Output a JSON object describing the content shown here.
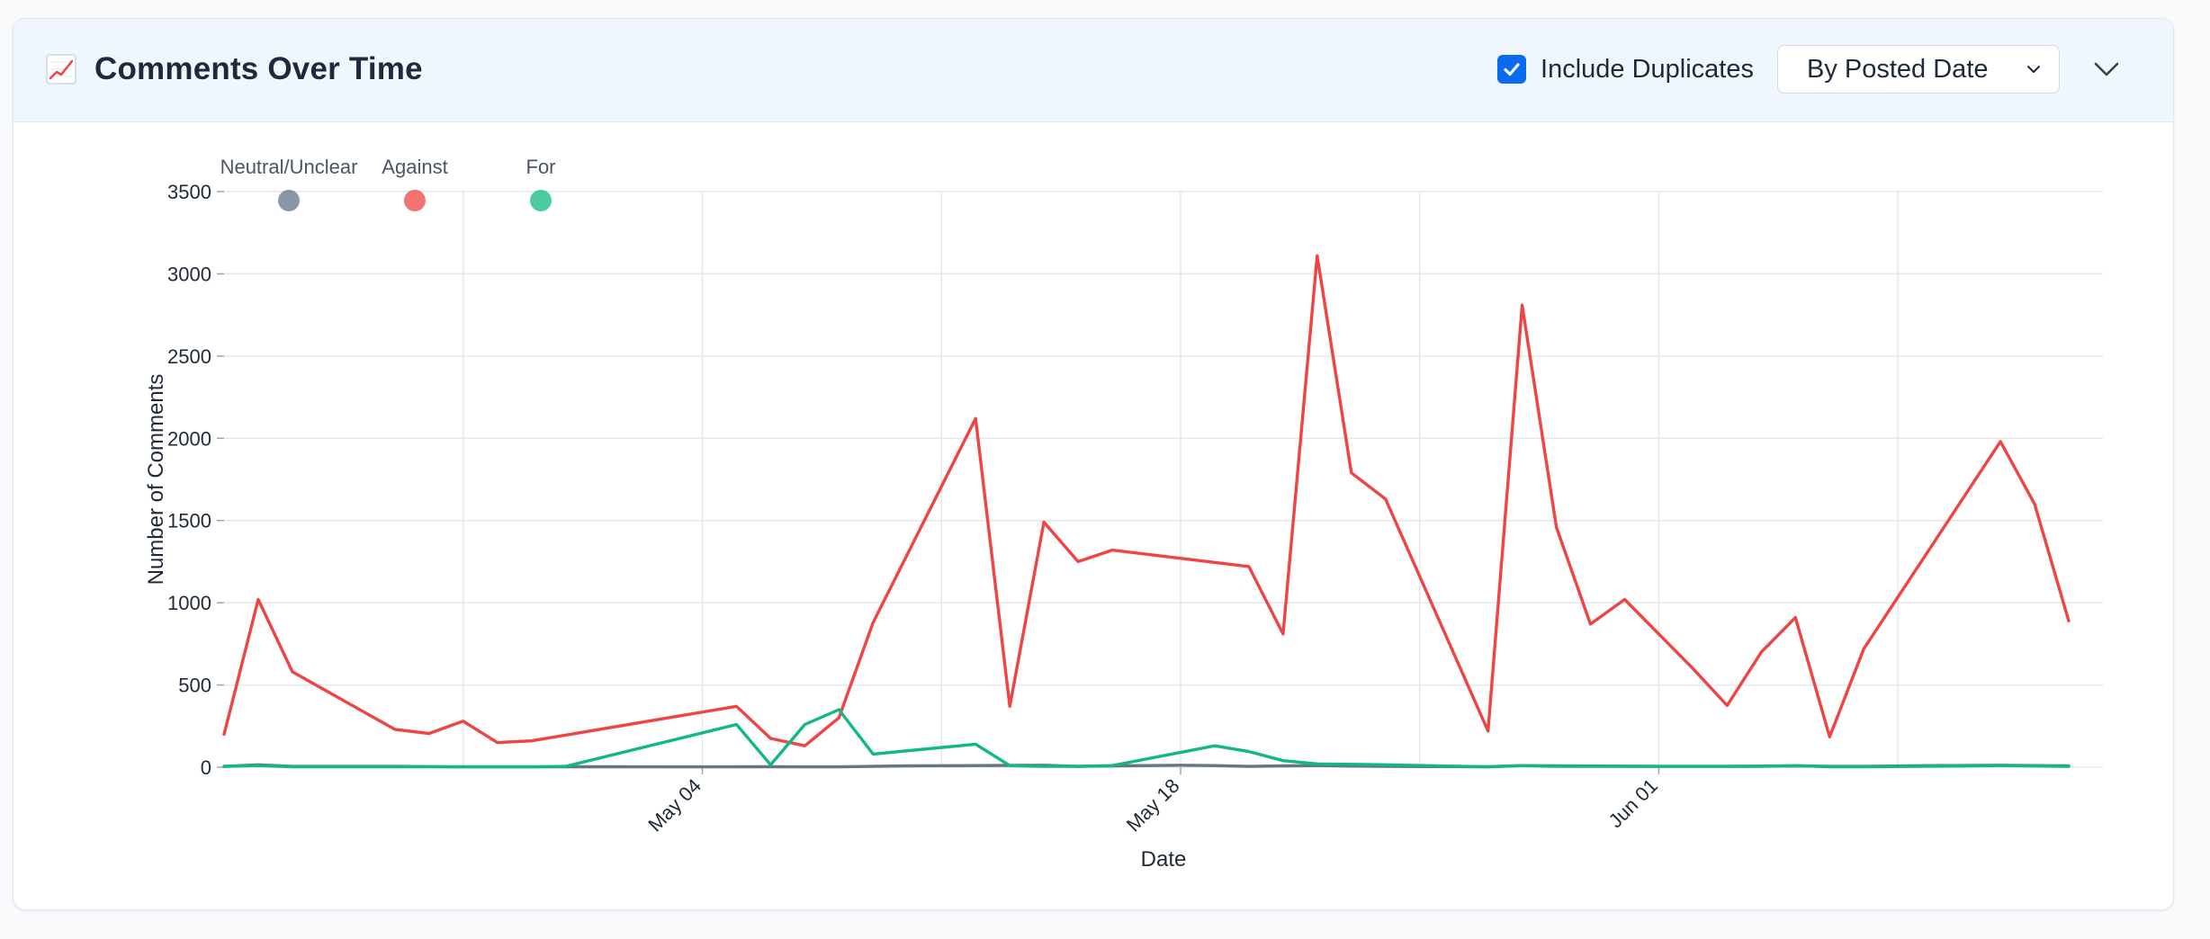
{
  "header": {
    "title": "Comments Over Time",
    "title_icon": "chart-increasing-icon",
    "include_duplicates_label": "Include Duplicates",
    "include_duplicates_checked": true,
    "sort_select_value": "By Posted Date",
    "collapse_icon": "chevron-down-icon"
  },
  "colors": {
    "accent": "#0b6bf0",
    "neutral": "#64748b",
    "against": "#ef4444",
    "for": "#10b981"
  },
  "chart_data": {
    "type": "line",
    "xlabel": "Date",
    "ylabel": "Number of Comments",
    "ylim": [
      0,
      3500
    ],
    "yticks": [
      0,
      500,
      1000,
      1500,
      2000,
      2500,
      3000,
      3500
    ],
    "xlim": [
      "2025-04-20",
      "2025-06-14"
    ],
    "xticks": [
      {
        "date": "2025-05-04",
        "label": "May 04"
      },
      {
        "date": "2025-05-18",
        "label": "May 18"
      },
      {
        "date": "2025-06-01",
        "label": "Jun 01"
      }
    ],
    "grid": true,
    "legend_position": "top-left",
    "series": [
      {
        "name": "Neutral/Unclear",
        "color": "#64748b",
        "points": [
          [
            "2025-04-20",
            5
          ],
          [
            "2025-04-21",
            15
          ],
          [
            "2025-04-22",
            5
          ],
          [
            "2025-04-25",
            5
          ],
          [
            "2025-04-27",
            2
          ],
          [
            "2025-04-29",
            2
          ],
          [
            "2025-04-30",
            3
          ],
          [
            "2025-05-04",
            2
          ],
          [
            "2025-05-06",
            3
          ],
          [
            "2025-05-08",
            2
          ],
          [
            "2025-05-10",
            8
          ],
          [
            "2025-05-12",
            10
          ],
          [
            "2025-05-14",
            12
          ],
          [
            "2025-05-15",
            5
          ],
          [
            "2025-05-16",
            8
          ],
          [
            "2025-05-17",
            10
          ],
          [
            "2025-05-18",
            12
          ],
          [
            "2025-05-19",
            10
          ],
          [
            "2025-05-20",
            5
          ],
          [
            "2025-05-21",
            8
          ],
          [
            "2025-05-22",
            10
          ],
          [
            "2025-05-24",
            5
          ],
          [
            "2025-05-27",
            3
          ],
          [
            "2025-05-28",
            10
          ],
          [
            "2025-05-29",
            8
          ],
          [
            "2025-06-01",
            5
          ],
          [
            "2025-06-03",
            5
          ],
          [
            "2025-06-05",
            8
          ],
          [
            "2025-06-06",
            5
          ],
          [
            "2025-06-07",
            5
          ],
          [
            "2025-06-09",
            10
          ],
          [
            "2025-06-11",
            12
          ],
          [
            "2025-06-13",
            8
          ]
        ]
      },
      {
        "name": "Against",
        "color": "#ef4444",
        "points": [
          [
            "2025-04-20",
            200
          ],
          [
            "2025-04-21",
            1020
          ],
          [
            "2025-04-22",
            580
          ],
          [
            "2025-04-25",
            230
          ],
          [
            "2025-04-26",
            205
          ],
          [
            "2025-04-27",
            280
          ],
          [
            "2025-04-28",
            150
          ],
          [
            "2025-04-29",
            160
          ],
          [
            "2025-05-05",
            370
          ],
          [
            "2025-05-06",
            175
          ],
          [
            "2025-05-07",
            130
          ],
          [
            "2025-05-08",
            300
          ],
          [
            "2025-05-09",
            880
          ],
          [
            "2025-05-12",
            2120
          ],
          [
            "2025-05-13",
            370
          ],
          [
            "2025-05-14",
            1490
          ],
          [
            "2025-05-15",
            1250
          ],
          [
            "2025-05-16",
            1320
          ],
          [
            "2025-05-20",
            1220
          ],
          [
            "2025-05-21",
            810
          ],
          [
            "2025-05-22",
            3110
          ],
          [
            "2025-05-23",
            1790
          ],
          [
            "2025-05-24",
            1630
          ],
          [
            "2025-05-27",
            220
          ],
          [
            "2025-05-28",
            2810
          ],
          [
            "2025-05-29",
            1460
          ],
          [
            "2025-05-30",
            870
          ],
          [
            "2025-05-31",
            1020
          ],
          [
            "2025-06-02",
            600
          ],
          [
            "2025-06-03",
            375
          ],
          [
            "2025-06-04",
            700
          ],
          [
            "2025-06-05",
            910
          ],
          [
            "2025-06-06",
            185
          ],
          [
            "2025-06-07",
            720
          ],
          [
            "2025-06-11",
            1980
          ],
          [
            "2025-06-12",
            1600
          ],
          [
            "2025-06-13",
            890
          ]
        ]
      },
      {
        "name": "For",
        "color": "#10b981",
        "points": [
          [
            "2025-04-20",
            5
          ],
          [
            "2025-04-21",
            10
          ],
          [
            "2025-04-22",
            2
          ],
          [
            "2025-04-25",
            2
          ],
          [
            "2025-04-26",
            2
          ],
          [
            "2025-04-29",
            2
          ],
          [
            "2025-04-30",
            5
          ],
          [
            "2025-05-05",
            260
          ],
          [
            "2025-05-06",
            15
          ],
          [
            "2025-05-07",
            260
          ],
          [
            "2025-05-08",
            350
          ],
          [
            "2025-05-09",
            80
          ],
          [
            "2025-05-12",
            140
          ],
          [
            "2025-05-13",
            10
          ],
          [
            "2025-05-14",
            5
          ],
          [
            "2025-05-15",
            5
          ],
          [
            "2025-05-16",
            10
          ],
          [
            "2025-05-19",
            130
          ],
          [
            "2025-05-20",
            95
          ],
          [
            "2025-05-21",
            40
          ],
          [
            "2025-05-22",
            20
          ],
          [
            "2025-05-24",
            15
          ],
          [
            "2025-05-27",
            2
          ],
          [
            "2025-05-28",
            10
          ],
          [
            "2025-05-29",
            5
          ],
          [
            "2025-06-01",
            5
          ],
          [
            "2025-06-04",
            5
          ],
          [
            "2025-06-05",
            10
          ],
          [
            "2025-06-06",
            2
          ],
          [
            "2025-06-07",
            2
          ],
          [
            "2025-06-10",
            8
          ],
          [
            "2025-06-11",
            10
          ],
          [
            "2025-06-13",
            5
          ]
        ]
      }
    ]
  }
}
